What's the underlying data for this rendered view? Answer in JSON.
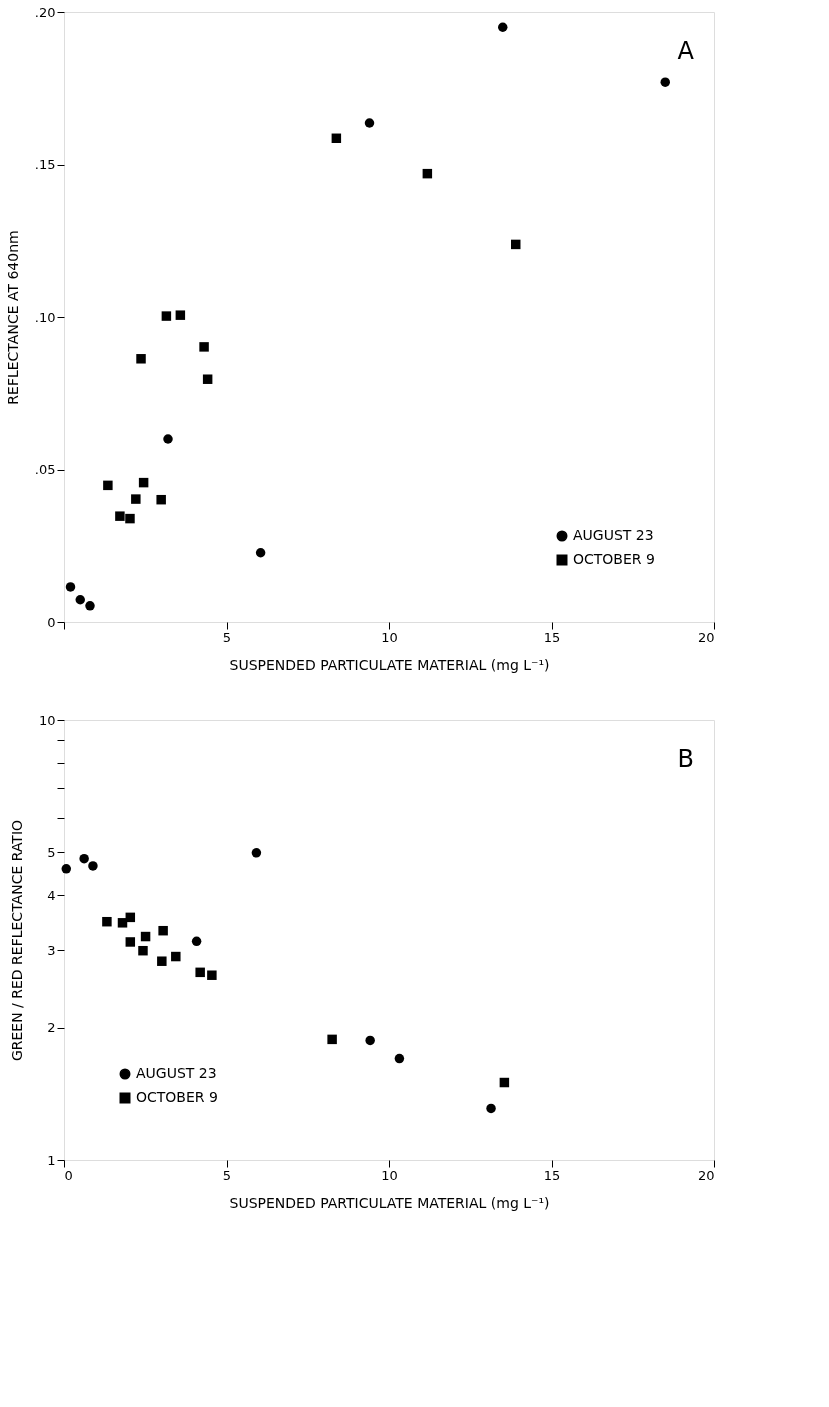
{
  "chart_data": [
    {
      "type": "scatter",
      "xlabel": "SUSPENDED   PARTICULATE   MATERIAL  (mg L⁻¹)",
      "ylabel": "REFLECTANCE    AT  640nm",
      "annotations": [
        "A"
      ],
      "xlim": [
        0,
        20
      ],
      "xticks": [
        {
          "value": 0,
          "label": null
        },
        5,
        10,
        15,
        20
      ],
      "ylim": [
        0,
        0.2
      ],
      "yticks": [
        0,
        {
          "value": 0.05,
          "label": ".05"
        },
        {
          "value": 0.1,
          "label": ".10"
        },
        {
          "value": 0.15,
          "label": ".15"
        },
        {
          "value": 0.2,
          "label": ".20"
        }
      ],
      "grid": false,
      "legend": "bottom right",
      "series": [
        {
          "name": "AUGUST  23",
          "color": "#000000",
          "marker": "circle",
          "x": [
            0.2,
            0.5,
            0.8,
            3.2,
            6.05,
            9.4,
            13.5,
            18.5
          ],
          "values": [
            0.0115,
            0.0073,
            0.0053,
            0.06,
            0.0227,
            0.1636,
            0.195,
            0.177
          ]
        },
        {
          "name": "OCTOBER  9",
          "color": "#000000",
          "marker": "square",
          "x": [
            1.35,
            1.72,
            2.03,
            2.21,
            2.45,
            2.37,
            2.99,
            3.15,
            3.58,
            4.31,
            4.42,
            8.38,
            11.18,
            13.9
          ],
          "values": [
            0.0448,
            0.0347,
            0.0339,
            0.0403,
            0.0457,
            0.0863,
            0.0401,
            0.1003,
            0.1006,
            0.0902,
            0.0796,
            0.1586,
            0.147,
            0.1238
          ]
        }
      ]
    },
    {
      "type": "scatter",
      "xlabel": "SUSPENDED   PARTICULATE   MATERIAL  (mg L⁻¹)",
      "ylabel": "GREEN / RED    REFLECTANCE    RATIO",
      "annotations": [
        "B"
      ],
      "xlim": [
        0,
        20
      ],
      "xticks": [
        0,
        5,
        10,
        15,
        20
      ],
      "ylim": [
        1,
        10
      ],
      "yticks": [
        1,
        2,
        3,
        4,
        5,
        {
          "value": 6,
          "label": null
        },
        {
          "value": 7,
          "label": null
        },
        {
          "value": 8,
          "label": null
        },
        {
          "value": 9,
          "label": null
        },
        10
      ],
      "log": "y",
      "grid": false,
      "legend": "bottom left",
      "series": [
        {
          "name": "AUGUST  23",
          "color": "#000000",
          "marker": "circle",
          "x": [
            0.07,
            0.62,
            0.89,
            5.92,
            4.08,
            9.42,
            10.32,
            13.14
          ],
          "values": [
            4.59,
            4.84,
            4.66,
            4.99,
            3.14,
            1.87,
            1.7,
            1.31
          ]
        },
        {
          "name": "OCTOBER  9",
          "color": "#000000",
          "marker": "square",
          "x": [
            1.32,
            1.8,
            2.04,
            2.04,
            2.51,
            2.43,
            3.05,
            3.01,
            3.44,
            4.19,
            4.55,
            8.25,
            13.55
          ],
          "values": [
            3.48,
            3.46,
            3.56,
            3.13,
            3.22,
            2.99,
            3.32,
            2.83,
            2.9,
            2.67,
            2.63,
            1.88,
            1.5
          ]
        }
      ]
    }
  ]
}
